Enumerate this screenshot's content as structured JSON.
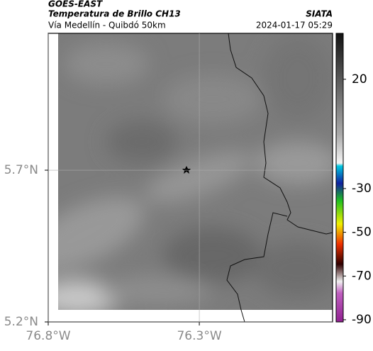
{
  "header": {
    "title": "GOES-EAST",
    "subtitle": "Temperatura de Brillo CH13",
    "agency": "SIATA",
    "location": "Vía Medellín - Quibdó 50km",
    "timestamp": "2024-01-17 05:29"
  },
  "map": {
    "xlim": [
      -76.8,
      -75.859
    ],
    "ylim": [
      5.2,
      6.151
    ],
    "xticks": [
      {
        "value": -76.8,
        "label": "76.8°W"
      },
      {
        "value": -76.3,
        "label": "76.3°W"
      }
    ],
    "yticks": [
      {
        "value": 5.2,
        "label": "5.2°N"
      },
      {
        "value": 5.7,
        "label": "5.7°N"
      }
    ],
    "grid": true
  },
  "colorbar": {
    "lim": [
      -91,
      41
    ],
    "ticks": [
      20,
      -30,
      -50,
      -70,
      -90
    ]
  }
}
